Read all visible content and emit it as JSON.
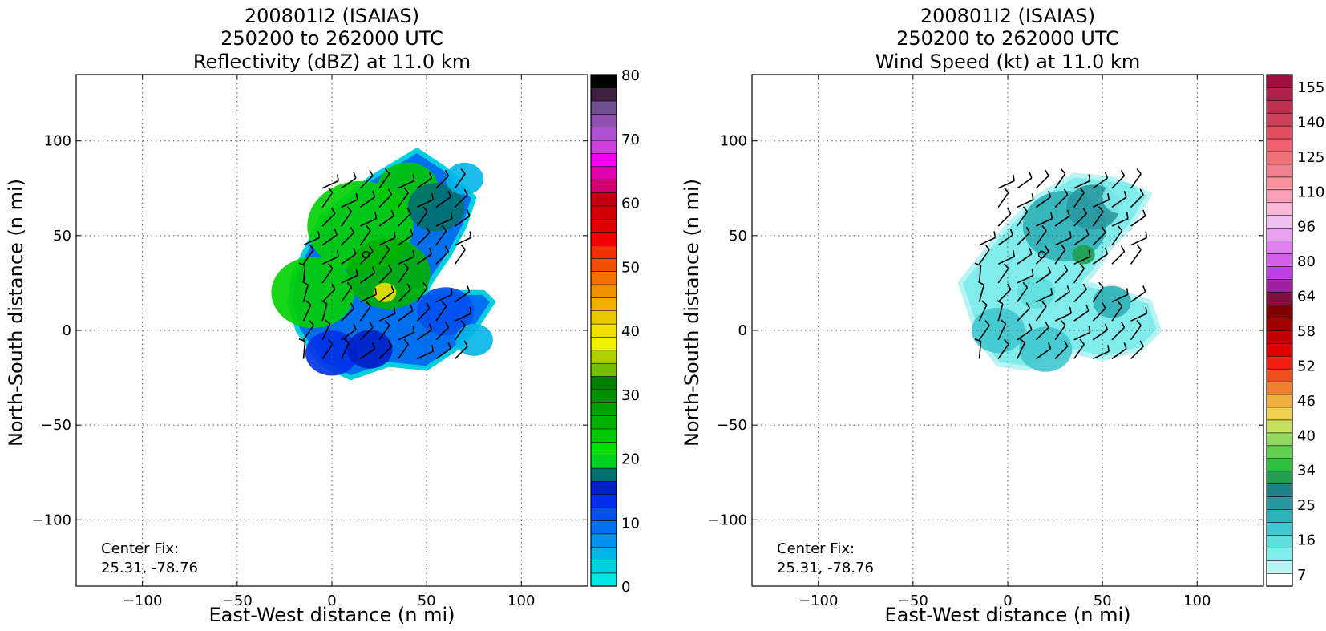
{
  "chart_data": [
    {
      "type": "heatmap",
      "title_lines": [
        "200801I2 (ISAIAS)",
        "250200 to 262000 UTC",
        "Reflectivity (dBZ) at 11.0 km"
      ],
      "xlabel": "East-West distance (n mi)",
      "ylabel": "North-South distance (n mi)",
      "xlim": [
        -135,
        135
      ],
      "ylim": [
        -135,
        135
      ],
      "xticks": [
        -100,
        -50,
        0,
        50,
        100
      ],
      "yticks": [
        -100,
        -50,
        0,
        50,
        100
      ],
      "xtick_labels": [
        "−100",
        "−50",
        "0",
        "50",
        "100"
      ],
      "ytick_labels": [
        "−100",
        "−50",
        "0",
        "50",
        "100"
      ],
      "grid": true,
      "annotation_lines": [
        "Center Fix:",
        "25.31, -78.76"
      ],
      "center_marker": [
        18,
        40
      ],
      "colorbar": {
        "min": 0,
        "max": 80,
        "tick_values": [
          0,
          10,
          20,
          30,
          40,
          50,
          60,
          70,
          80
        ],
        "tick_labels": [
          "0",
          "10",
          "20",
          "30",
          "40",
          "50",
          "60",
          "70",
          "80"
        ],
        "colors": [
          "#00e5e5",
          "#00cfe0",
          "#00b5e8",
          "#0090f0",
          "#0070f0",
          "#0050f0",
          "#0030e8",
          "#0020c8",
          "#007070",
          "#00d020",
          "#00e000",
          "#00c800",
          "#00b000",
          "#00a000",
          "#009000",
          "#008000",
          "#70c000",
          "#b0d000",
          "#f0f000",
          "#f0e000",
          "#e8c800",
          "#f0b000",
          "#f09000",
          "#f07000",
          "#f05000",
          "#f03000",
          "#f00000",
          "#e00000",
          "#d00000",
          "#c00010",
          "#d00070",
          "#e000b0",
          "#f000f0",
          "#d040e0",
          "#b050d0",
          "#9050b0",
          "#705090",
          "#402040",
          "#000000"
        ]
      },
      "region": {
        "polygons": [
          [
            [
              -20,
              30
            ],
            [
              -5,
              60
            ],
            [
              20,
              80
            ],
            [
              45,
              95
            ],
            [
              60,
              85
            ],
            [
              75,
              70
            ],
            [
              70,
              55
            ],
            [
              62,
              40
            ],
            [
              55,
              30
            ],
            [
              50,
              22
            ],
            [
              40,
              20
            ],
            [
              80,
              20
            ],
            [
              85,
              15
            ],
            [
              75,
              0
            ],
            [
              65,
              -10
            ],
            [
              50,
              -20
            ],
            [
              30,
              -18
            ],
            [
              10,
              -25
            ],
            [
              -5,
              -18
            ],
            [
              -18,
              0
            ],
            [
              -22,
              15
            ]
          ]
        ],
        "cells": [
          {
            "x": -10,
            "y": 20,
            "r": 22,
            "color": "#00d000"
          },
          {
            "x": 15,
            "y": 55,
            "r": 28,
            "color": "#00d000"
          },
          {
            "x": 30,
            "y": 30,
            "r": 22,
            "color": "#00b000"
          },
          {
            "x": 40,
            "y": 75,
            "r": 16,
            "color": "#00c800"
          },
          {
            "x": 28,
            "y": 20,
            "r": 6,
            "color": "#f0e000"
          },
          {
            "x": 55,
            "y": 65,
            "r": 15,
            "color": "#007070"
          },
          {
            "x": 60,
            "y": 10,
            "r": 15,
            "color": "#0050f0"
          },
          {
            "x": 70,
            "y": 80,
            "r": 10,
            "color": "#00b5e8"
          },
          {
            "x": 75,
            "y": -5,
            "r": 10,
            "color": "#00b5e8"
          },
          {
            "x": 0,
            "y": -12,
            "r": 14,
            "color": "#0030e8"
          },
          {
            "x": 20,
            "y": -10,
            "r": 12,
            "color": "#0020c8"
          }
        ],
        "base_color": "#0070f0",
        "edge_color": "#00cfe0"
      }
    },
    {
      "type": "heatmap",
      "title_lines": [
        "200801I2 (ISAIAS)",
        "250200 to 262000 UTC",
        "Wind Speed (kt) at 11.0 km"
      ],
      "xlabel": "East-West distance (n mi)",
      "ylabel": "North-South distance (n mi)",
      "xlim": [
        -135,
        135
      ],
      "ylim": [
        -135,
        135
      ],
      "xticks": [
        -100,
        -50,
        0,
        50,
        100
      ],
      "yticks": [
        -100,
        -50,
        0,
        50,
        100
      ],
      "xtick_labels": [
        "−100",
        "−50",
        "0",
        "50",
        "100"
      ],
      "ytick_labels": [
        "−100",
        "−50",
        "0",
        "50",
        "100"
      ],
      "grid": true,
      "annotation_lines": [
        "Center Fix:",
        "25.31, -78.76"
      ],
      "center_marker": [
        18,
        40
      ],
      "colorbar": {
        "tick_labels": [
          "7",
          "16",
          "25",
          "34",
          "40",
          "46",
          "52",
          "58",
          "64",
          "80",
          "96",
          "110",
          "125",
          "140",
          "155"
        ],
        "colors": [
          "#ffffff",
          "#b8f4f4",
          "#80ecec",
          "#60dede",
          "#40c8d0",
          "#30b0b8",
          "#2898a0",
          "#208088",
          "#20a050",
          "#30c040",
          "#60d050",
          "#90d860",
          "#c8e060",
          "#f0d050",
          "#f0b040",
          "#f08030",
          "#f05020",
          "#f02010",
          "#e00000",
          "#c00000",
          "#a00000",
          "#800000",
          "#801040",
          "#a020a0",
          "#c040e0",
          "#d060e8",
          "#e080f0",
          "#e8a0f0",
          "#f0c0f0",
          "#f8b8d8",
          "#f8a0b8",
          "#f890a0",
          "#f08090",
          "#f07078",
          "#f06070",
          "#e05060",
          "#d04058",
          "#c03050",
          "#b02048",
          "#a01040"
        ]
      },
      "region": {
        "polygons": [
          [
            [
              -25,
              25
            ],
            [
              -5,
              50
            ],
            [
              15,
              70
            ],
            [
              35,
              82
            ],
            [
              55,
              80
            ],
            [
              75,
              72
            ],
            [
              65,
              55
            ],
            [
              55,
              45
            ],
            [
              45,
              30
            ],
            [
              40,
              25
            ],
            [
              60,
              20
            ],
            [
              75,
              15
            ],
            [
              80,
              0
            ],
            [
              70,
              -10
            ],
            [
              50,
              -15
            ],
            [
              30,
              -10
            ],
            [
              10,
              -20
            ],
            [
              -5,
              -18
            ],
            [
              -15,
              -5
            ],
            [
              -20,
              10
            ]
          ]
        ],
        "cells": [
          {
            "x": -5,
            "y": 0,
            "r": 14,
            "color": "#40c8d0"
          },
          {
            "x": 30,
            "y": 55,
            "r": 22,
            "color": "#30b0b8"
          },
          {
            "x": 45,
            "y": 65,
            "r": 14,
            "color": "#2898a0"
          },
          {
            "x": 40,
            "y": 40,
            "r": 6,
            "color": "#20a050"
          },
          {
            "x": 20,
            "y": -10,
            "r": 14,
            "color": "#40c8d0"
          },
          {
            "x": 55,
            "y": 15,
            "r": 10,
            "color": "#30b0b8"
          },
          {
            "x": 15,
            "y": 20,
            "r": 10,
            "color": "#60dede"
          },
          {
            "x": 60,
            "y": 70,
            "r": 10,
            "color": "#80ecec"
          }
        ],
        "base_color": "#80ecec",
        "edge_color": "#b8f4f4"
      }
    }
  ]
}
